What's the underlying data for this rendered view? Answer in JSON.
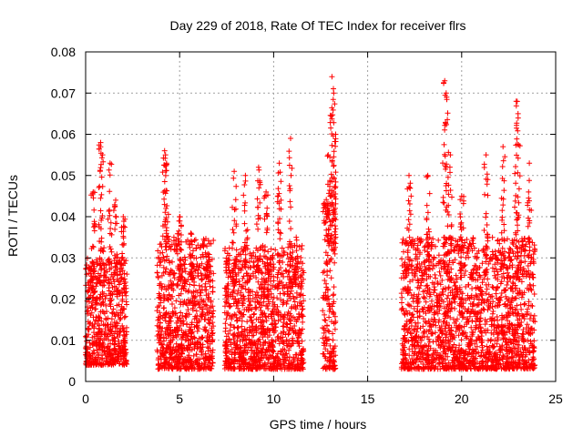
{
  "chart_data": {
    "type": "scatter",
    "title": "Day 229 of 2018, Rate Of TEC Index for receiver flrs",
    "xlabel": "GPS time / hours",
    "ylabel": "ROTI / TECUs",
    "xlim": [
      0,
      25
    ],
    "ylim": [
      0,
      0.08
    ],
    "xticks": [
      0,
      5,
      10,
      15,
      20,
      25
    ],
    "xtick_labels": [
      "0",
      "5",
      "10",
      "15",
      "20",
      "25"
    ],
    "yticks": [
      0,
      0.01,
      0.02,
      0.03,
      0.04,
      0.05,
      0.06,
      0.07,
      0.08
    ],
    "ytick_labels": [
      "0",
      "0.01",
      "0.02",
      "0.03",
      "0.04",
      "0.05",
      "0.06",
      "0.07",
      "0.08"
    ],
    "grid": true,
    "marker": "+",
    "color": "#ff0000",
    "series": [
      {
        "name": "ROTI",
        "clusters": [
          {
            "x_range": [
              0.0,
              2.2
            ],
            "typical": [
              0.004,
              0.03
            ],
            "peaks": [
              [
                0.4,
                0.046
              ],
              [
                0.8,
                0.058
              ],
              [
                0.9,
                0.055
              ],
              [
                1.3,
                0.053
              ],
              [
                1.6,
                0.044
              ],
              [
                2.0,
                0.04
              ]
            ]
          },
          {
            "x_range": [
              3.8,
              6.8
            ],
            "typical": [
              0.003,
              0.035
            ],
            "peaks": [
              [
                4.2,
                0.056
              ],
              [
                4.3,
                0.053
              ],
              [
                5.0,
                0.04
              ],
              [
                5.6,
                0.036
              ],
              [
                6.5,
                0.031
              ]
            ]
          },
          {
            "x_range": [
              7.4,
              11.6
            ],
            "typical": [
              0.003,
              0.033
            ],
            "peaks": [
              [
                7.9,
                0.051
              ],
              [
                8.5,
                0.05
              ],
              [
                9.2,
                0.052
              ],
              [
                9.6,
                0.046
              ],
              [
                10.3,
                0.053
              ],
              [
                10.9,
                0.059
              ],
              [
                11.2,
                0.035
              ]
            ]
          },
          {
            "x_range": [
              12.6,
              13.3
            ],
            "typical": [
              0.003,
              0.045
            ],
            "peaks": [
              [
                12.9,
                0.055
              ],
              [
                13.1,
                0.074
              ],
              [
                13.2,
                0.07
              ],
              [
                13.3,
                0.06
              ]
            ]
          },
          {
            "x_range": [
              16.8,
              23.9
            ],
            "typical": [
              0.003,
              0.035
            ],
            "peaks": [
              [
                17.2,
                0.05
              ],
              [
                18.2,
                0.05
              ],
              [
                19.1,
                0.073
              ],
              [
                19.2,
                0.069
              ],
              [
                19.4,
                0.055
              ],
              [
                20.0,
                0.045
              ],
              [
                21.3,
                0.055
              ],
              [
                22.2,
                0.057
              ],
              [
                22.9,
                0.068
              ],
              [
                23.0,
                0.065
              ],
              [
                23.6,
                0.053
              ]
            ]
          }
        ]
      }
    ]
  }
}
